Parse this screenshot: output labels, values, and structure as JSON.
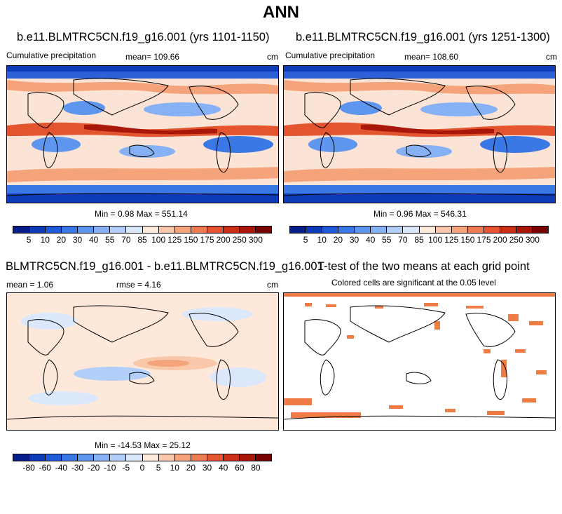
{
  "figure": {
    "title": "ANN"
  },
  "panel1": {
    "title": "b.e11.BLMTRC5CN.f19_g16.001 (yrs 1101-1150)",
    "variable": "Cumulative precipitation",
    "mean": "mean= 109.66",
    "units": "cm",
    "minmax": "Min =   0.98 Max = 551.14"
  },
  "panel2": {
    "title": "b.e11.BLMTRC5CN.f19_g16.001 (yrs 1251-1300)",
    "variable": "Cumulative precipitation",
    "mean": "mean= 108.60",
    "units": "cm",
    "minmax": "Min =   0.96 Max = 546.31"
  },
  "panel3": {
    "title": "BLMTRC5CN.f19_g16.001 - b.e11.BLMTRC5CN.f19_g16.001",
    "mean": "mean =   1.06",
    "rmse": "rmse =   4.16",
    "units": "cm",
    "minmax": "Min = -14.53 Max =  25.12"
  },
  "panel4": {
    "title": "T-test of the two means at each grid point",
    "subtitle": "Colored cells are significant at the 0.05 level",
    "significant_color": "#f07c45"
  },
  "colorbar_precip": {
    "labels": [
      "5",
      "10",
      "20",
      "30",
      "40",
      "55",
      "70",
      "85",
      "100",
      "125",
      "150",
      "175",
      "200",
      "250",
      "300"
    ],
    "colors": [
      "#051e8c",
      "#0d3bb5",
      "#1f5bd6",
      "#3a78e6",
      "#5d95ef",
      "#86b2f5",
      "#b2cff9",
      "#dbe8fc",
      "#fdeadb",
      "#f9c8aa",
      "#f4a37b",
      "#ee7c52",
      "#e3542f",
      "#cb3017",
      "#a81709",
      "#780200"
    ]
  },
  "colorbar_diff": {
    "labels": [
      "-80",
      "-60",
      "-40",
      "-30",
      "-20",
      "-10",
      "-5",
      "0",
      "5",
      "10",
      "20",
      "30",
      "40",
      "60",
      "80"
    ],
    "colors": [
      "#051e8c",
      "#0d3bb5",
      "#1f5bd6",
      "#3a78e6",
      "#5d95ef",
      "#86b2f5",
      "#b2cff9",
      "#dbe8fc",
      "#fdeadb",
      "#f9c8aa",
      "#f4a37b",
      "#ee7c52",
      "#e3542f",
      "#cb3017",
      "#a81709",
      "#780200"
    ]
  }
}
